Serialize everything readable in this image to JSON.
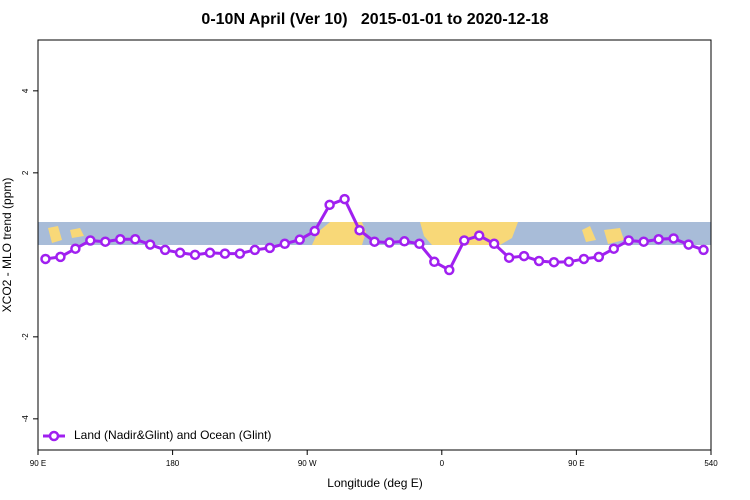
{
  "chart_data": {
    "type": "line",
    "title": "0-10N April (Ver 10)   2015-01-01 to 2020-12-18",
    "x_label": "Longitude (deg E)",
    "y_label": "XCO2 - MLO trend (ppm)",
    "x": [
      95,
      105,
      115,
      125,
      135,
      145,
      155,
      165,
      175,
      185,
      195,
      205,
      215,
      225,
      235,
      245,
      255,
      265,
      275,
      285,
      295,
      305,
      315,
      325,
      335,
      345,
      355,
      365,
      375,
      385,
      395,
      405,
      415,
      425,
      435,
      445,
      455,
      465,
      475,
      485,
      495,
      505,
      515,
      525,
      535
    ],
    "series": [
      {
        "name": "Land (Nadir&Glint) and Ocean (Glint)",
        "color": "#a020f0",
        "values": [
          -0.1,
          -0.05,
          0.15,
          0.35,
          0.32,
          0.38,
          0.38,
          0.25,
          0.12,
          0.05,
          0.0,
          0.05,
          0.03,
          0.03,
          0.12,
          0.17,
          0.27,
          0.37,
          0.58,
          1.22,
          1.36,
          0.6,
          0.32,
          0.3,
          0.33,
          0.27,
          -0.17,
          -0.37,
          0.35,
          0.47,
          0.27,
          -0.07,
          -0.03,
          -0.15,
          -0.18,
          -0.17,
          -0.1,
          -0.05,
          0.15,
          0.35,
          0.32,
          0.38,
          0.4,
          0.25,
          0.12
        ]
      }
    ],
    "xlim": [
      90,
      540
    ],
    "xticks": [
      {
        "value": 90,
        "label": "90 E"
      },
      180,
      {
        "value": 270,
        "label": "90 W"
      },
      {
        "value": 360,
        "label": "0"
      },
      {
        "value": 450,
        "label": "90 E"
      },
      540
    ],
    "ylim": [
      -4.76,
      5.24
    ],
    "yticks": [
      -4,
      -2,
      2,
      4
    ],
    "legend": "bottom-left"
  }
}
